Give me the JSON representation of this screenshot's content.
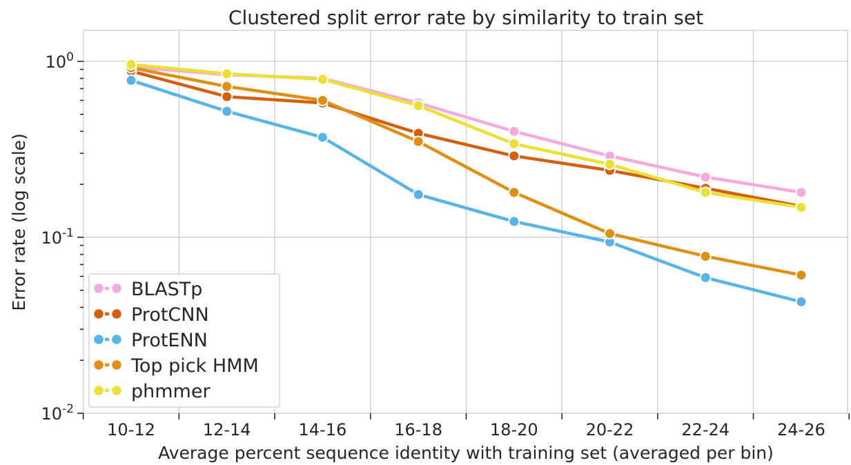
{
  "chart_data": {
    "type": "line",
    "title": "Clustered split error rate by similarity to train set",
    "xlabel": "Average percent sequence identity with training set (averaged per bin)",
    "ylabel": "Error rate (log scale)",
    "yscale": "log",
    "ylim": [
      0.01,
      1.5
    ],
    "yticks": [
      {
        "value": 1,
        "base": "10",
        "exp": "0"
      },
      {
        "value": 0.1,
        "base": "10",
        "exp": "-1"
      },
      {
        "value": 0.01,
        "base": "10",
        "exp": "-2"
      }
    ],
    "categories": [
      "10-12",
      "12-14",
      "14-16",
      "16-18",
      "18-20",
      "20-22",
      "22-24",
      "24-26"
    ],
    "grid": true,
    "legend_position": "lower-left",
    "series": [
      {
        "name": "BLASTp",
        "color": "#f7a8dc",
        "values": [
          0.93,
          0.84,
          0.8,
          0.58,
          0.4,
          0.29,
          0.22,
          0.18
        ]
      },
      {
        "name": "ProtCNN",
        "color": "#d55e0f",
        "values": [
          0.88,
          0.63,
          0.58,
          0.39,
          0.29,
          0.24,
          0.19,
          0.15
        ]
      },
      {
        "name": "ProtENN",
        "color": "#56b4e9",
        "values": [
          0.78,
          0.52,
          0.37,
          0.175,
          0.123,
          0.094,
          0.059,
          0.043
        ]
      },
      {
        "name": "Top pick HMM",
        "color": "#e08f10",
        "values": [
          0.92,
          0.72,
          0.6,
          0.35,
          0.18,
          0.105,
          0.078,
          0.061
        ]
      },
      {
        "name": "phmmer",
        "color": "#ece133",
        "values": [
          0.96,
          0.85,
          0.79,
          0.56,
          0.34,
          0.26,
          0.18,
          0.148
        ]
      }
    ]
  }
}
